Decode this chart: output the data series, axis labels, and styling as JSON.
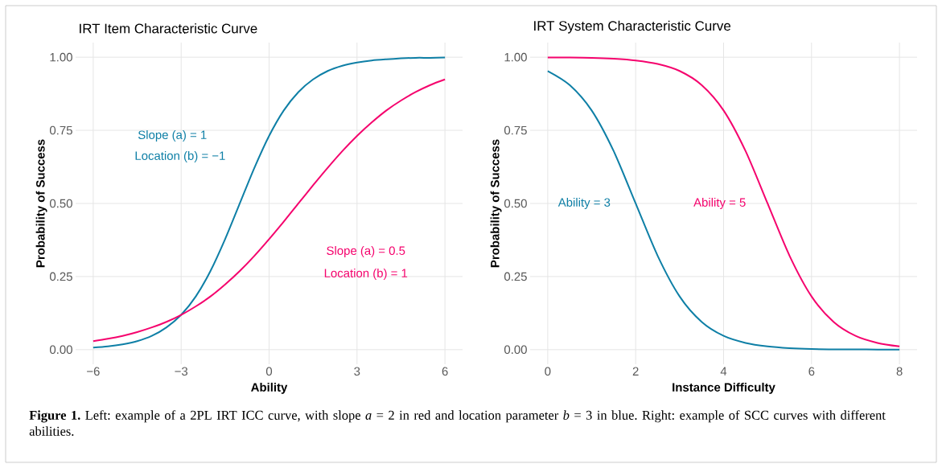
{
  "chart_data": [
    {
      "type": "line",
      "title": "IRT Item Characteristic Curve",
      "xlabel": "Ability",
      "ylabel": "Probability of Success",
      "xlim": [
        -6.6,
        6.6
      ],
      "ylim": [
        -0.05,
        1.05
      ],
      "xticks": [
        {
          "value": -6,
          "label": "−6"
        },
        {
          "value": -3,
          "label": "−3"
        },
        0,
        3,
        6
      ],
      "yticks": [
        {
          "value": 0,
          "label": "0.00"
        },
        {
          "value": 0.25,
          "label": "0.25"
        },
        {
          "value": 0.5,
          "label": "0.50"
        },
        {
          "value": 0.75,
          "label": "0.75"
        },
        {
          "value": 1,
          "label": "1.00"
        }
      ],
      "grid": true,
      "x": [
        -6,
        -5.5,
        -5,
        -4.5,
        -4,
        -3.5,
        -3,
        -2.5,
        -2,
        -1.5,
        -1,
        -0.5,
        0,
        0.5,
        1,
        1.5,
        2,
        2.5,
        3,
        3.5,
        4,
        4.5,
        5,
        5.5,
        6
      ],
      "series": [
        {
          "color": "#0e7fa6",
          "values": [
            0.007,
            0.011,
            0.018,
            0.029,
            0.047,
            0.076,
            0.119,
            0.182,
            0.269,
            0.378,
            0.5,
            0.622,
            0.731,
            0.818,
            0.881,
            0.924,
            0.953,
            0.971,
            0.982,
            0.989,
            0.993,
            0.996,
            0.998,
            0.998,
            0.999
          ]
        },
        {
          "color": "#f5036d",
          "values": [
            0.029,
            0.037,
            0.047,
            0.06,
            0.076,
            0.095,
            0.119,
            0.148,
            0.182,
            0.223,
            0.269,
            0.321,
            0.378,
            0.438,
            0.5,
            0.562,
            0.622,
            0.679,
            0.731,
            0.777,
            0.818,
            0.852,
            0.881,
            0.905,
            0.924
          ]
        }
      ],
      "annotations": [
        "Slope (a) = 1",
        "Location (b) = −1",
        "Slope (a) = 0.5",
        "Location (b) = 1",
        "**Figure 1.** Left: example of a 2PL IRT ICC curve, with slope *a* = 2 in red and location parameter *b* = 3 in blue. Right: example of SCC curves with different abilities."
      ]
    },
    {
      "type": "line",
      "title": "IRT System Characteristic Curve",
      "xlabel": "Instance Difficulty",
      "ylabel": "Probability of Success",
      "xlim": [
        -0.4,
        8.4
      ],
      "ylim": [
        -0.05,
        1.05
      ],
      "xticks": [
        0,
        2,
        4,
        6,
        8
      ],
      "yticks": [
        {
          "value": 0,
          "label": "0.00"
        },
        {
          "value": 0.25,
          "label": "0.25"
        },
        {
          "value": 0.5,
          "label": "0.50"
        },
        {
          "value": 0.75,
          "label": "0.75"
        },
        {
          "value": 1,
          "label": "1.00"
        }
      ],
      "grid": true,
      "x": [
        0,
        0.5,
        1,
        1.5,
        2,
        2.5,
        3,
        3.5,
        4,
        4.5,
        5,
        5.5,
        6,
        6.5,
        7,
        7.5,
        8
      ],
      "series": [
        {
          "color": "#0e7fa6",
          "values": [
            0.953,
            0.905,
            0.818,
            0.679,
            0.5,
            0.321,
            0.182,
            0.095,
            0.047,
            0.023,
            0.011,
            0.005,
            0.002,
            0.001,
            0.001,
            0.0,
            0.0
          ]
        },
        {
          "color": "#f5036d",
          "values": [
            0.999,
            0.999,
            0.998,
            0.995,
            0.989,
            0.977,
            0.953,
            0.905,
            0.818,
            0.679,
            0.5,
            0.321,
            0.182,
            0.095,
            0.047,
            0.023,
            0.011
          ]
        }
      ],
      "annotations": [
        "Ability = 3",
        "Ability = 5"
      ]
    }
  ]
}
